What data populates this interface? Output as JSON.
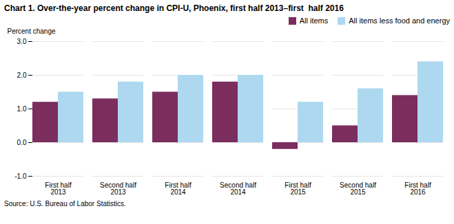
{
  "chart_data": {
    "type": "bar",
    "title": "Chart 1. Over-the-year percent change in CPI-U, Phoenix, first half 2013–first  half 2016",
    "ylabel": "Percent change",
    "source": "Source: U.S. Bureau of Labor Statistics.",
    "categories": [
      "First half 2013",
      "Second half 2013",
      "First half 2014",
      "Second half 2014",
      "First half 2015",
      "Second half 2015",
      "First half 2016"
    ],
    "series": [
      {
        "name": "All items",
        "color": "#7B2D5E",
        "values": [
          1.2,
          1.3,
          1.5,
          1.8,
          -0.2,
          0.5,
          1.4
        ]
      },
      {
        "name": "All items less food and energy",
        "color": "#ADD8F0",
        "values": [
          1.5,
          1.8,
          2.0,
          2.0,
          1.2,
          1.6,
          2.4
        ]
      }
    ],
    "ylim": [
      -1.0,
      3.0
    ],
    "yticks": [
      {
        "value": -1.0,
        "label": "-1.0"
      },
      {
        "value": 0.0,
        "label": "0.0"
      },
      {
        "value": 1.0,
        "label": "1.0"
      },
      {
        "value": 2.0,
        "label": "2.0"
      },
      {
        "value": 3.0,
        "label": "3.0"
      }
    ],
    "grid": true,
    "legend": "upper right"
  }
}
